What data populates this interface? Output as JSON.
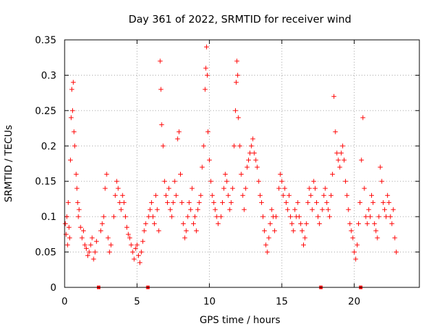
{
  "chart_data": {
    "type": "scatter",
    "title": "Day 361 of 2022, SRMTID for receiver wind",
    "xlabel": "GPS time / hours",
    "ylabel": "SRMTID / TECUs",
    "xlim": [
      0,
      24.5
    ],
    "ylim": [
      0,
      0.35
    ],
    "xticks": [
      0,
      5,
      10,
      15,
      20
    ],
    "xtick_labels": [
      "0",
      "5",
      "10",
      "15",
      "20"
    ],
    "yticks": [
      0,
      0.05,
      0.1,
      0.15,
      0.2,
      0.25,
      0.3,
      0.35
    ],
    "ytick_labels": [
      "0",
      "0.05",
      "0.1",
      "0.15",
      "0.2",
      "0.25",
      "0.3",
      "0.35"
    ],
    "grid": true,
    "marker": "plus",
    "series_color": "#ff0000",
    "zero_markers_x": [
      2.35,
      5.75,
      17.7,
      20.45
    ],
    "series": [
      {
        "name": "SRMTID",
        "points": [
          [
            0.05,
            0.09
          ],
          [
            0.1,
            0.075
          ],
          [
            0.15,
            0.1
          ],
          [
            0.2,
            0.06
          ],
          [
            0.25,
            0.12
          ],
          [
            0.3,
            0.085
          ],
          [
            0.35,
            0.07
          ],
          [
            0.4,
            0.18
          ],
          [
            0.45,
            0.24
          ],
          [
            0.5,
            0.28
          ],
          [
            0.55,
            0.25
          ],
          [
            0.6,
            0.29
          ],
          [
            0.65,
            0.22
          ],
          [
            0.7,
            0.2
          ],
          [
            0.8,
            0.16
          ],
          [
            0.85,
            0.14
          ],
          [
            0.9,
            0.12
          ],
          [
            0.95,
            0.1
          ],
          [
            1.0,
            0.11
          ],
          [
            1.1,
            0.085
          ],
          [
            1.2,
            0.07
          ],
          [
            1.3,
            0.08
          ],
          [
            1.4,
            0.06
          ],
          [
            1.5,
            0.055
          ],
          [
            1.6,
            0.045
          ],
          [
            1.7,
            0.05
          ],
          [
            1.8,
            0.06
          ],
          [
            1.9,
            0.07
          ],
          [
            2.0,
            0.04
          ],
          [
            2.1,
            0.05
          ],
          [
            2.2,
            0.065
          ],
          [
            2.5,
            0.08
          ],
          [
            2.6,
            0.09
          ],
          [
            2.7,
            0.1
          ],
          [
            2.8,
            0.14
          ],
          [
            2.9,
            0.16
          ],
          [
            3.0,
            0.07
          ],
          [
            3.1,
            0.05
          ],
          [
            3.2,
            0.06
          ],
          [
            3.4,
            0.1
          ],
          [
            3.5,
            0.13
          ],
          [
            3.6,
            0.15
          ],
          [
            3.7,
            0.14
          ],
          [
            3.8,
            0.12
          ],
          [
            3.9,
            0.11
          ],
          [
            4.0,
            0.13
          ],
          [
            4.1,
            0.12
          ],
          [
            4.2,
            0.1
          ],
          [
            4.3,
            0.085
          ],
          [
            4.4,
            0.075
          ],
          [
            4.5,
            0.07
          ],
          [
            4.6,
            0.06
          ],
          [
            4.7,
            0.05
          ],
          [
            4.8,
            0.04
          ],
          [
            4.9,
            0.055
          ],
          [
            5.0,
            0.06
          ],
          [
            5.1,
            0.045
          ],
          [
            5.2,
            0.035
          ],
          [
            5.3,
            0.05
          ],
          [
            5.4,
            0.065
          ],
          [
            5.5,
            0.08
          ],
          [
            5.6,
            0.09
          ],
          [
            5.8,
            0.1
          ],
          [
            5.9,
            0.11
          ],
          [
            6.0,
            0.12
          ],
          [
            6.1,
            0.1
          ],
          [
            6.2,
            0.09
          ],
          [
            6.3,
            0.13
          ],
          [
            6.4,
            0.11
          ],
          [
            6.5,
            0.08
          ],
          [
            6.6,
            0.32
          ],
          [
            6.65,
            0.28
          ],
          [
            6.7,
            0.23
          ],
          [
            6.8,
            0.2
          ],
          [
            6.9,
            0.15
          ],
          [
            7.0,
            0.13
          ],
          [
            7.1,
            0.12
          ],
          [
            7.2,
            0.14
          ],
          [
            7.3,
            0.11
          ],
          [
            7.4,
            0.1
          ],
          [
            7.5,
            0.12
          ],
          [
            7.6,
            0.15
          ],
          [
            7.7,
            0.13
          ],
          [
            7.8,
            0.21
          ],
          [
            7.9,
            0.22
          ],
          [
            8.0,
            0.16
          ],
          [
            8.1,
            0.12
          ],
          [
            8.2,
            0.09
          ],
          [
            8.3,
            0.07
          ],
          [
            8.4,
            0.08
          ],
          [
            8.5,
            0.1
          ],
          [
            8.6,
            0.12
          ],
          [
            8.7,
            0.11
          ],
          [
            8.8,
            0.14
          ],
          [
            8.9,
            0.09
          ],
          [
            9.0,
            0.1
          ],
          [
            9.1,
            0.08
          ],
          [
            9.2,
            0.11
          ],
          [
            9.3,
            0.12
          ],
          [
            9.4,
            0.13
          ],
          [
            9.5,
            0.17
          ],
          [
            9.6,
            0.2
          ],
          [
            9.7,
            0.28
          ],
          [
            9.75,
            0.31
          ],
          [
            9.8,
            0.34
          ],
          [
            9.85,
            0.3
          ],
          [
            9.9,
            0.22
          ],
          [
            10.0,
            0.18
          ],
          [
            10.1,
            0.15
          ],
          [
            10.2,
            0.13
          ],
          [
            10.3,
            0.12
          ],
          [
            10.4,
            0.11
          ],
          [
            10.5,
            0.1
          ],
          [
            10.6,
            0.09
          ],
          [
            10.8,
            0.1
          ],
          [
            10.9,
            0.12
          ],
          [
            11.0,
            0.14
          ],
          [
            11.1,
            0.16
          ],
          [
            11.2,
            0.15
          ],
          [
            11.3,
            0.13
          ],
          [
            11.4,
            0.11
          ],
          [
            11.5,
            0.12
          ],
          [
            11.6,
            0.14
          ],
          [
            11.7,
            0.2
          ],
          [
            11.8,
            0.25
          ],
          [
            11.85,
            0.29
          ],
          [
            11.9,
            0.32
          ],
          [
            11.95,
            0.3
          ],
          [
            12.0,
            0.24
          ],
          [
            12.1,
            0.2
          ],
          [
            12.2,
            0.16
          ],
          [
            12.3,
            0.13
          ],
          [
            12.4,
            0.11
          ],
          [
            12.5,
            0.14
          ],
          [
            12.6,
            0.17
          ],
          [
            12.7,
            0.18
          ],
          [
            12.8,
            0.19
          ],
          [
            12.9,
            0.2
          ],
          [
            13.0,
            0.21
          ],
          [
            13.1,
            0.19
          ],
          [
            13.2,
            0.18
          ],
          [
            13.3,
            0.17
          ],
          [
            13.4,
            0.15
          ],
          [
            13.5,
            0.13
          ],
          [
            13.6,
            0.12
          ],
          [
            13.7,
            0.1
          ],
          [
            13.8,
            0.08
          ],
          [
            13.9,
            0.06
          ],
          [
            14.0,
            0.05
          ],
          [
            14.1,
            0.07
          ],
          [
            14.2,
            0.09
          ],
          [
            14.3,
            0.11
          ],
          [
            14.4,
            0.1
          ],
          [
            14.5,
            0.08
          ],
          [
            14.6,
            0.1
          ],
          [
            14.8,
            0.14
          ],
          [
            14.9,
            0.16
          ],
          [
            15.0,
            0.15
          ],
          [
            15.1,
            0.13
          ],
          [
            15.2,
            0.14
          ],
          [
            15.3,
            0.12
          ],
          [
            15.4,
            0.11
          ],
          [
            15.5,
            0.13
          ],
          [
            15.6,
            0.1
          ],
          [
            15.7,
            0.09
          ],
          [
            15.8,
            0.08
          ],
          [
            15.9,
            0.11
          ],
          [
            16.0,
            0.1
          ],
          [
            16.1,
            0.12
          ],
          [
            16.2,
            0.1
          ],
          [
            16.3,
            0.09
          ],
          [
            16.4,
            0.08
          ],
          [
            16.5,
            0.06
          ],
          [
            16.6,
            0.07
          ],
          [
            16.7,
            0.09
          ],
          [
            16.8,
            0.12
          ],
          [
            16.9,
            0.14
          ],
          [
            17.0,
            0.13
          ],
          [
            17.1,
            0.11
          ],
          [
            17.2,
            0.15
          ],
          [
            17.3,
            0.14
          ],
          [
            17.4,
            0.12
          ],
          [
            17.5,
            0.1
          ],
          [
            17.6,
            0.09
          ],
          [
            17.8,
            0.11
          ],
          [
            17.9,
            0.13
          ],
          [
            18.0,
            0.14
          ],
          [
            18.1,
            0.12
          ],
          [
            18.2,
            0.11
          ],
          [
            18.3,
            0.1
          ],
          [
            18.4,
            0.13
          ],
          [
            18.5,
            0.16
          ],
          [
            18.6,
            0.27
          ],
          [
            18.7,
            0.22
          ],
          [
            18.8,
            0.19
          ],
          [
            18.9,
            0.18
          ],
          [
            19.0,
            0.17
          ],
          [
            19.1,
            0.19
          ],
          [
            19.2,
            0.2
          ],
          [
            19.3,
            0.18
          ],
          [
            19.4,
            0.15
          ],
          [
            19.5,
            0.13
          ],
          [
            19.6,
            0.11
          ],
          [
            19.7,
            0.09
          ],
          [
            19.8,
            0.08
          ],
          [
            19.9,
            0.07
          ],
          [
            20.0,
            0.05
          ],
          [
            20.1,
            0.04
          ],
          [
            20.2,
            0.06
          ],
          [
            20.3,
            0.09
          ],
          [
            20.4,
            0.12
          ],
          [
            20.5,
            0.18
          ],
          [
            20.6,
            0.24
          ],
          [
            20.7,
            0.14
          ],
          [
            20.8,
            0.1
          ],
          [
            20.9,
            0.09
          ],
          [
            21.0,
            0.11
          ],
          [
            21.1,
            0.1
          ],
          [
            21.2,
            0.13
          ],
          [
            21.3,
            0.12
          ],
          [
            21.4,
            0.09
          ],
          [
            21.5,
            0.08
          ],
          [
            21.6,
            0.07
          ],
          [
            21.7,
            0.1
          ],
          [
            21.8,
            0.17
          ],
          [
            21.9,
            0.15
          ],
          [
            22.0,
            0.12
          ],
          [
            22.1,
            0.11
          ],
          [
            22.2,
            0.1
          ],
          [
            22.3,
            0.13
          ],
          [
            22.4,
            0.12
          ],
          [
            22.5,
            0.1
          ],
          [
            22.6,
            0.09
          ],
          [
            22.7,
            0.11
          ],
          [
            22.8,
            0.07
          ],
          [
            22.9,
            0.05
          ]
        ]
      }
    ]
  }
}
